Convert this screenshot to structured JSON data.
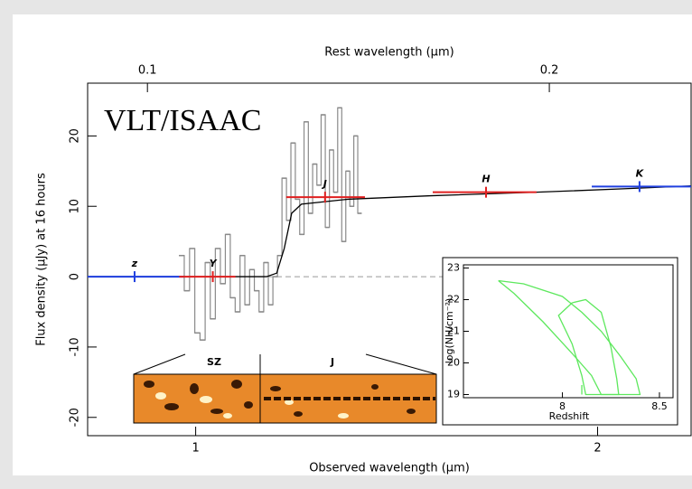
{
  "chart_data": [
    {
      "type": "line",
      "xlabel": "Observed wavelength (μm)",
      "ylabel": "Flux density (μJy) at 16 hours",
      "x2label": "Rest wavelength (μm)",
      "annotation": "VLT/ISAAC",
      "xscale": "log",
      "xlim": [
        0.83,
        2.35
      ],
      "xticks": [
        1,
        2
      ],
      "x2lim": [
        0.0902,
        0.2554
      ],
      "x2ticks": [
        0.1,
        0.2
      ],
      "ylim": [
        -22.6,
        27.5
      ],
      "yticks": [
        -20,
        -10,
        0,
        10,
        20
      ],
      "hline": {
        "y": 0,
        "x": [
          1.08,
          1.53
        ],
        "color": "#999999"
      },
      "series": [
        {
          "step": true,
          "color": "#8a8a8a",
          "x": [
            0.976,
            0.985,
            0.994,
            1.003,
            1.012,
            1.021,
            1.03,
            1.039,
            1.048,
            1.057,
            1.066,
            1.075,
            1.084,
            1.093,
            1.102,
            1.111,
            1.12,
            1.129,
            1.138,
            1.147,
            1.156,
            1.165,
            1.174,
            1.183,
            1.192,
            1.201,
            1.21,
            1.219,
            1.228,
            1.237,
            1.246,
            1.255,
            1.264,
            1.273,
            1.282,
            1.291,
            1.3,
            1.309,
            1.318,
            1.327
          ],
          "values": [
            3,
            -2,
            4,
            -8,
            -9,
            2,
            -6,
            4,
            -1,
            6,
            -3,
            -5,
            3,
            -4,
            1,
            -2,
            -5,
            2,
            -4,
            0,
            3,
            14,
            8,
            19,
            11,
            6,
            22,
            9,
            16,
            13,
            23,
            7,
            18,
            12,
            24,
            5,
            15,
            10,
            20,
            9
          ]
        },
        {
          "color": "#000000",
          "x": [
            0.83,
            1.13,
            1.15,
            1.165,
            1.18,
            1.2,
            1.3,
            1.5,
            1.8,
            2.1,
            2.35
          ],
          "values": [
            0,
            0,
            0.5,
            4,
            9,
            10.3,
            11,
            11.5,
            12,
            12.5,
            12.9
          ]
        }
      ],
      "points": {
        "labels": [
          "z",
          "Y",
          "J",
          "H",
          "K"
        ],
        "x": [
          0.9,
          1.03,
          1.25,
          1.65,
          2.15
        ],
        "xmin": [
          0.83,
          0.972,
          1.169,
          1.505,
          1.98
        ],
        "xmax": [
          0.98,
          1.071,
          1.339,
          1.8,
          2.35
        ],
        "values": [
          0,
          0,
          11.3,
          12,
          12.8
        ],
        "colors": [
          "#2040e0",
          "#e02020",
          "#e02020",
          "#e02020",
          "#2040e0"
        ]
      },
      "cutout": {
        "labels": [
          "SZ",
          "J"
        ]
      }
    },
    {
      "type": "line",
      "xlabel": "Redshift",
      "ylabel": "log(NH/cm⁻²)",
      "xlim": [
        7.49,
        8.57
      ],
      "xticks": [
        8,
        8.5
      ],
      "ylim": [
        18.9,
        23.1
      ],
      "yticks": [
        19,
        20,
        21,
        22,
        23
      ],
      "series": [
        {
          "color": "#5de85d",
          "x": [
            7.67,
            7.8,
            8.0,
            8.1,
            8.2,
            8.3,
            8.38,
            8.4,
            8.2,
            8.15,
            8.05,
            7.9,
            7.75,
            7.67
          ],
          "values": [
            22.6,
            22.5,
            22.1,
            21.6,
            21.0,
            20.2,
            19.5,
            19,
            19,
            19.6,
            20.3,
            21.3,
            22.2,
            22.6
          ]
        },
        {
          "color": "#5de85d",
          "x": [
            8.05,
            8.12,
            8.2,
            8.25,
            8.28,
            8.29,
            8.12,
            8.1,
            8.05,
            7.98,
            8.05
          ],
          "values": [
            21.9,
            22.0,
            21.6,
            20.5,
            19.5,
            19,
            19,
            19.6,
            20.6,
            21.5,
            21.9
          ]
        },
        {
          "color": "#5de85d",
          "x": [
            8.1,
            8.1
          ],
          "values": [
            19,
            19.3
          ]
        }
      ]
    }
  ]
}
